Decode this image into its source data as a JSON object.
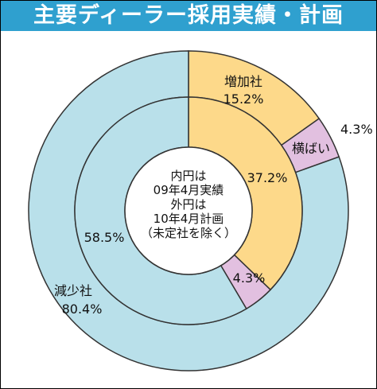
{
  "title": "主要ディーラー採用実績・計画",
  "colors": {
    "title_bg": "#2fa0cf",
    "increase": "#fdd98a",
    "flat": "#e2c0e0",
    "decrease": "#b9e0ea",
    "stroke": "#333333"
  },
  "center_note": [
    "内円は",
    "09年4月実績",
    "外円は",
    "10年4月計画",
    "（未定社を除く）"
  ],
  "chart_data": [
    {
      "type": "pie",
      "ring": "outer",
      "title": "10年4月計画",
      "slices": [
        {
          "name": "増加社",
          "value": 15.2,
          "label": "15.2%"
        },
        {
          "name": "横ばい",
          "value": 4.3,
          "label": "4.3%"
        },
        {
          "name": "減少社",
          "value": 80.4,
          "label": "80.4%"
        }
      ]
    },
    {
      "type": "pie",
      "ring": "inner",
      "title": "09年4月実績",
      "slices": [
        {
          "name": "増加社",
          "value": 37.2,
          "label": "37.2%"
        },
        {
          "name": "横ばい",
          "value": 4.3,
          "label": "4.3%"
        },
        {
          "name": "減少社",
          "value": 58.5,
          "label": "58.5%"
        }
      ]
    }
  ],
  "labels": {
    "increase_name": "増加社",
    "flat_name": "横ばい",
    "decrease_name": "減少社"
  }
}
